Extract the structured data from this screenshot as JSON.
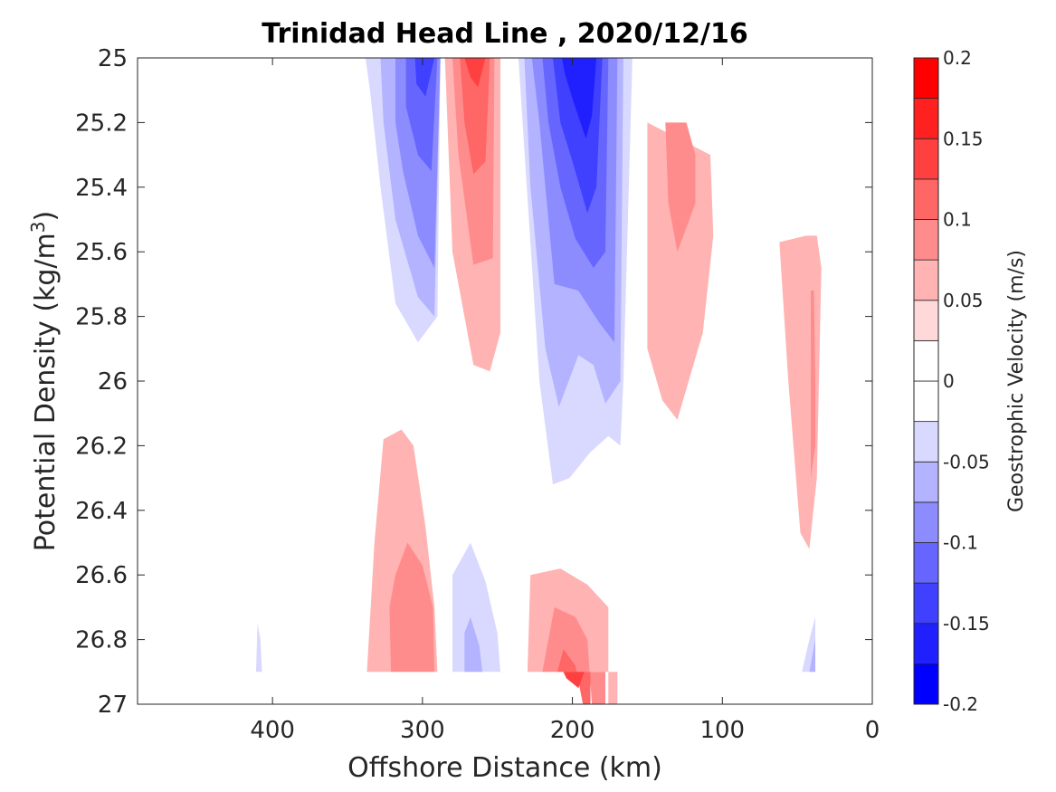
{
  "chart_data": {
    "type": "contour",
    "title": "Trinidad Head Line , 2020/12/16",
    "xlabel": "Offshore Distance (km)",
    "ylabel_main": "Potential Density (kg/m",
    "ylabel_sup": "3",
    "ylabel_close": ")",
    "xlim": [
      490,
      0
    ],
    "ylim": [
      25,
      27
    ],
    "x_reversed": true,
    "y_reversed": true,
    "xticks": [
      400,
      300,
      200,
      100,
      0
    ],
    "xtick_labels": [
      "400",
      "300",
      "200",
      "100",
      "0"
    ],
    "yticks": [
      25,
      25.2,
      25.4,
      25.6,
      25.8,
      26,
      26.2,
      26.4,
      26.6,
      26.8,
      27
    ],
    "ytick_labels": [
      "25",
      "25.2",
      "25.4",
      "25.6",
      "25.8",
      "26",
      "26.2",
      "26.4",
      "26.6",
      "26.8",
      "27"
    ],
    "colorbar": {
      "label": "Geostrophic Velocity (m/s)",
      "range": [
        -0.2,
        0.2
      ],
      "ticks": [
        -0.2,
        -0.15,
        -0.1,
        -0.05,
        0,
        0.05,
        0.1,
        0.15,
        0.2
      ],
      "tick_labels": [
        "-0.2",
        "-0.15",
        "-0.1",
        "-0.05",
        "0",
        "0.05",
        "0.1",
        "0.15",
        "0.2"
      ],
      "levels": [
        {
          "min": -0.2,
          "max": -0.175,
          "color": "#0000ff"
        },
        {
          "min": -0.175,
          "max": -0.15,
          "color": "#2020ff"
        },
        {
          "min": -0.15,
          "max": -0.125,
          "color": "#4040ff"
        },
        {
          "min": -0.125,
          "max": -0.1,
          "color": "#6666ff"
        },
        {
          "min": -0.1,
          "max": -0.075,
          "color": "#8c8cff"
        },
        {
          "min": -0.075,
          "max": -0.05,
          "color": "#b3b3ff"
        },
        {
          "min": -0.05,
          "max": -0.025,
          "color": "#d9d9ff"
        },
        {
          "min": -0.025,
          "max": 0.0,
          "color": "#ffffff"
        },
        {
          "min": 0.0,
          "max": 0.025,
          "color": "#ffffff"
        },
        {
          "min": 0.025,
          "max": 0.05,
          "color": "#ffd9d9"
        },
        {
          "min": 0.05,
          "max": 0.075,
          "color": "#ffb3b3"
        },
        {
          "min": 0.075,
          "max": 0.1,
          "color": "#ff8c8c"
        },
        {
          "min": 0.1,
          "max": 0.125,
          "color": "#ff6666"
        },
        {
          "min": 0.125,
          "max": 0.15,
          "color": "#ff4040"
        },
        {
          "min": 0.15,
          "max": 0.175,
          "color": "#ff2020"
        },
        {
          "min": 0.175,
          "max": 0.2,
          "color": "#ff0000"
        }
      ]
    },
    "regions": [
      {
        "name": "offshore-jet-outer",
        "level": -0.05,
        "points": [
          [
            338,
            25
          ],
          [
            288,
            25
          ],
          [
            290,
            25.8
          ],
          [
            303,
            25.88
          ],
          [
            318,
            25.76
          ],
          [
            328,
            25.4
          ],
          [
            335,
            25.1
          ]
        ]
      },
      {
        "name": "offshore-jet-mid",
        "level": -0.075,
        "points": [
          [
            328,
            25
          ],
          [
            288,
            25
          ],
          [
            292,
            25.8
          ],
          [
            303,
            25.74
          ],
          [
            318,
            25.5
          ],
          [
            326,
            25.2
          ]
        ]
      },
      {
        "name": "offshore-jet-inner",
        "level": -0.1,
        "points": [
          [
            318,
            25
          ],
          [
            288,
            25
          ],
          [
            292,
            25.65
          ],
          [
            303,
            25.55
          ],
          [
            313,
            25.35
          ],
          [
            318,
            25.2
          ]
        ]
      },
      {
        "name": "offshore-jet-core",
        "level": -0.125,
        "points": [
          [
            311,
            25
          ],
          [
            290,
            25
          ],
          [
            294,
            25.35
          ],
          [
            303,
            25.3
          ],
          [
            311,
            25.15
          ]
        ]
      },
      {
        "name": "offshore-jet-max",
        "level": -0.15,
        "points": [
          [
            305,
            25
          ],
          [
            292,
            25
          ],
          [
            298,
            25.12
          ],
          [
            304,
            25.08
          ]
        ]
      },
      {
        "name": "offshore-counter-outer",
        "level": 0.05,
        "points": [
          [
            285,
            25
          ],
          [
            248,
            25
          ],
          [
            248,
            25.85
          ],
          [
            255,
            25.97
          ],
          [
            266,
            25.95
          ],
          [
            280,
            25.6
          ]
        ]
      },
      {
        "name": "offshore-counter-mid",
        "level": 0.075,
        "points": [
          [
            280,
            25
          ],
          [
            252,
            25
          ],
          [
            253,
            25.62
          ],
          [
            266,
            25.64
          ],
          [
            276,
            25.3
          ]
        ]
      },
      {
        "name": "offshore-counter-inner",
        "level": 0.1,
        "points": [
          [
            275,
            25
          ],
          [
            255,
            25
          ],
          [
            258,
            25.32
          ],
          [
            266,
            25.36
          ],
          [
            272,
            25.2
          ]
        ]
      },
      {
        "name": "offshore-counter-core",
        "level": 0.125,
        "points": [
          [
            272,
            25
          ],
          [
            258,
            25
          ],
          [
            263,
            25.09
          ],
          [
            268,
            25.06
          ]
        ]
      },
      {
        "name": "central-jet-outer",
        "level": -0.05,
        "points": [
          [
            236,
            25
          ],
          [
            160,
            25
          ],
          [
            166,
            26
          ],
          [
            168,
            26.2
          ],
          [
            176,
            26.17
          ],
          [
            188,
            26.22
          ],
          [
            202,
            26.3
          ],
          [
            213,
            26.32
          ],
          [
            222,
            26
          ]
        ]
      },
      {
        "name": "central-jet-mid",
        "level": -0.075,
        "points": [
          [
            232,
            25
          ],
          [
            166,
            25
          ],
          [
            168,
            26
          ],
          [
            178,
            26.07
          ],
          [
            186,
            25.95
          ],
          [
            196,
            25.92
          ],
          [
            209,
            26.08
          ],
          [
            218,
            25.9
          ],
          [
            228,
            25.4
          ]
        ]
      },
      {
        "name": "central-jet-inner",
        "level": -0.1,
        "points": [
          [
            227,
            25
          ],
          [
            170,
            25
          ],
          [
            172,
            25.88
          ],
          [
            182,
            25.82
          ],
          [
            196,
            25.72
          ],
          [
            212,
            25.7
          ],
          [
            222,
            25.2
          ]
        ]
      },
      {
        "name": "central-jet-core",
        "level": -0.125,
        "points": [
          [
            220,
            25
          ],
          [
            176,
            25
          ],
          [
            178,
            25.6
          ],
          [
            186,
            25.65
          ],
          [
            198,
            25.56
          ],
          [
            208,
            25.4
          ],
          [
            216,
            25.2
          ]
        ]
      },
      {
        "name": "central-jet-deep",
        "level": -0.15,
        "points": [
          [
            213,
            25
          ],
          [
            180,
            25
          ],
          [
            184,
            25.4
          ],
          [
            190,
            25.48
          ],
          [
            200,
            25.32
          ],
          [
            208,
            25.2
          ]
        ]
      },
      {
        "name": "central-jet-max",
        "level": -0.175,
        "points": [
          [
            207,
            25
          ],
          [
            184,
            25
          ],
          [
            187,
            25.18
          ],
          [
            191,
            25.25
          ],
          [
            199,
            25.14
          ],
          [
            205,
            25.05
          ]
        ]
      },
      {
        "name": "inshore-pos-outer",
        "level": 0.05,
        "points": [
          [
            150,
            25.2
          ],
          [
            108,
            25.3
          ],
          [
            106,
            25.55
          ],
          [
            113,
            25.85
          ],
          [
            130,
            26.12
          ],
          [
            140,
            26.06
          ],
          [
            150,
            25.9
          ]
        ]
      },
      {
        "name": "inshore-pos-inner",
        "level": 0.075,
        "points": [
          [
            138,
            25.2
          ],
          [
            124,
            25.2
          ],
          [
            118,
            25.3
          ],
          [
            118,
            25.45
          ],
          [
            130,
            25.6
          ],
          [
            136,
            25.45
          ]
        ]
      },
      {
        "name": "coastal-pos-outer",
        "level": 0.05,
        "points": [
          [
            62,
            25.57
          ],
          [
            44,
            25.55
          ],
          [
            37,
            25.55
          ],
          [
            34,
            25.65
          ],
          [
            37,
            26.3
          ],
          [
            42,
            26.52
          ],
          [
            48,
            26.47
          ],
          [
            56,
            26
          ]
        ]
      },
      {
        "name": "coastal-pos-inner",
        "level": 0.075,
        "points": [
          [
            41,
            25.72
          ],
          [
            39,
            25.72
          ],
          [
            38,
            26
          ],
          [
            38,
            26.2
          ],
          [
            41,
            26.3
          ]
        ]
      },
      {
        "name": "deep-pos-outer",
        "level": 0.05,
        "points": [
          [
            337,
            26.9
          ],
          [
            290,
            26.9
          ],
          [
            292,
            26.7
          ],
          [
            298,
            26.45
          ],
          [
            306,
            26.2
          ],
          [
            314,
            26.15
          ],
          [
            326,
            26.18
          ],
          [
            332,
            26.5
          ]
        ]
      },
      {
        "name": "deep-pos-inner",
        "level": 0.075,
        "points": [
          [
            321,
            26.9
          ],
          [
            292,
            26.9
          ],
          [
            293,
            26.7
          ],
          [
            300,
            26.57
          ],
          [
            310,
            26.5
          ],
          [
            318,
            26.6
          ],
          [
            322,
            26.7
          ]
        ]
      },
      {
        "name": "deep-neg-outer",
        "level": -0.05,
        "points": [
          [
            280,
            26.9
          ],
          [
            248,
            26.9
          ],
          [
            250,
            26.78
          ],
          [
            258,
            26.62
          ],
          [
            268,
            26.5
          ],
          [
            280,
            26.6
          ]
        ]
      },
      {
        "name": "deep-neg-inner",
        "level": -0.075,
        "points": [
          [
            272,
            26.9
          ],
          [
            260,
            26.9
          ],
          [
            262,
            26.82
          ],
          [
            268,
            26.73
          ],
          [
            272,
            26.78
          ]
        ]
      },
      {
        "name": "bottom-pos-outer",
        "level": 0.05,
        "points": [
          [
            230,
            26.9
          ],
          [
            170,
            26.9
          ],
          [
            170,
            27
          ],
          [
            176,
            27
          ],
          [
            176,
            26.7
          ],
          [
            190,
            26.63
          ],
          [
            208,
            26.58
          ],
          [
            228,
            26.6
          ]
        ]
      },
      {
        "name": "bottom-pos-mid",
        "level": 0.075,
        "points": [
          [
            220,
            26.9
          ],
          [
            178,
            26.9
          ],
          [
            178,
            27
          ],
          [
            187,
            27
          ],
          [
            190,
            26.8
          ],
          [
            198,
            26.73
          ],
          [
            212,
            26.7
          ]
        ]
      },
      {
        "name": "bottom-pos-inner",
        "level": 0.1,
        "points": [
          [
            210,
            26.9
          ],
          [
            188,
            26.9
          ],
          [
            188,
            27
          ],
          [
            193,
            27
          ],
          [
            198,
            26.88
          ],
          [
            206,
            26.83
          ]
        ]
      },
      {
        "name": "bottom-pos-core",
        "level": 0.125,
        "points": [
          [
            206,
            26.9
          ],
          [
            192,
            26.9
          ],
          [
            196,
            26.95
          ],
          [
            204,
            26.92
          ]
        ]
      },
      {
        "name": "deep-offshore-neg",
        "level": -0.05,
        "points": [
          [
            411,
            26.9
          ],
          [
            407,
            26.9
          ],
          [
            408,
            26.8
          ],
          [
            410,
            26.75
          ]
        ]
      },
      {
        "name": "coastal-deep-neg-outer",
        "level": -0.05,
        "points": [
          [
            47,
            26.9
          ],
          [
            38,
            26.9
          ],
          [
            38,
            26.73
          ],
          [
            42,
            26.8
          ]
        ]
      },
      {
        "name": "coastal-deep-neg-inner",
        "level": -0.075,
        "points": [
          [
            42,
            26.9
          ],
          [
            38,
            26.9
          ],
          [
            38,
            26.8
          ]
        ]
      }
    ]
  }
}
